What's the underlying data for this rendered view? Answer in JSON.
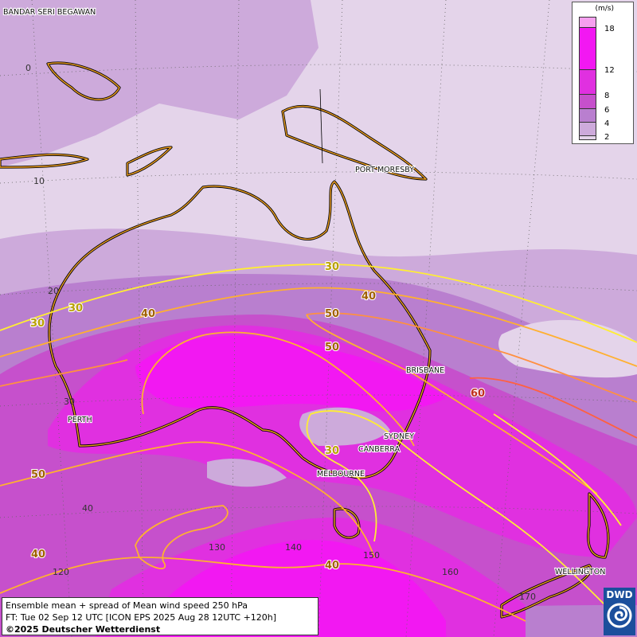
{
  "title": "Ensemble mean + spread of Mean wind speed 250 hPa",
  "forecast": "FT: Tue 02 Sep 12 UTC [ICON EPS 2025 Aug 28 12UTC +120h]",
  "copyright": "©2025 Deutscher Wetterdienst",
  "logo_text": "DWD",
  "legend": {
    "unit": "(m/s)",
    "levels": [
      "2",
      "4",
      "6",
      "8",
      "12",
      "18"
    ],
    "colors": [
      "#e4d4ea",
      "#cdaadb",
      "#b97fcf",
      "#c650cc",
      "#e030e0",
      "#f218f2",
      "#f6a0ef"
    ]
  },
  "cities": [
    "BANDAR SERI BEGAWAN",
    "PORT MORESBY",
    "BRISBANE",
    "SYDNEY",
    "CANBERRA",
    "MELBOURNE",
    "PERTH",
    "WELLINGTON"
  ],
  "latitude_labels": [
    "0",
    "10",
    "20",
    "30",
    "40"
  ],
  "longitude_labels": [
    "120",
    "130",
    "140",
    "150",
    "160",
    "170"
  ],
  "isotach_labels": [
    "30",
    "30",
    "30",
    "30",
    "40",
    "40",
    "40",
    "40",
    "50",
    "50",
    "50",
    "60"
  ],
  "colors": {
    "coast": "#f0a020",
    "border": "#000000",
    "contour_30": "#ffee33",
    "contour_40": "#ffb030",
    "contour_50": "#ff9040",
    "contour_60": "#ff6040",
    "logo": "#1b4f9c"
  }
}
